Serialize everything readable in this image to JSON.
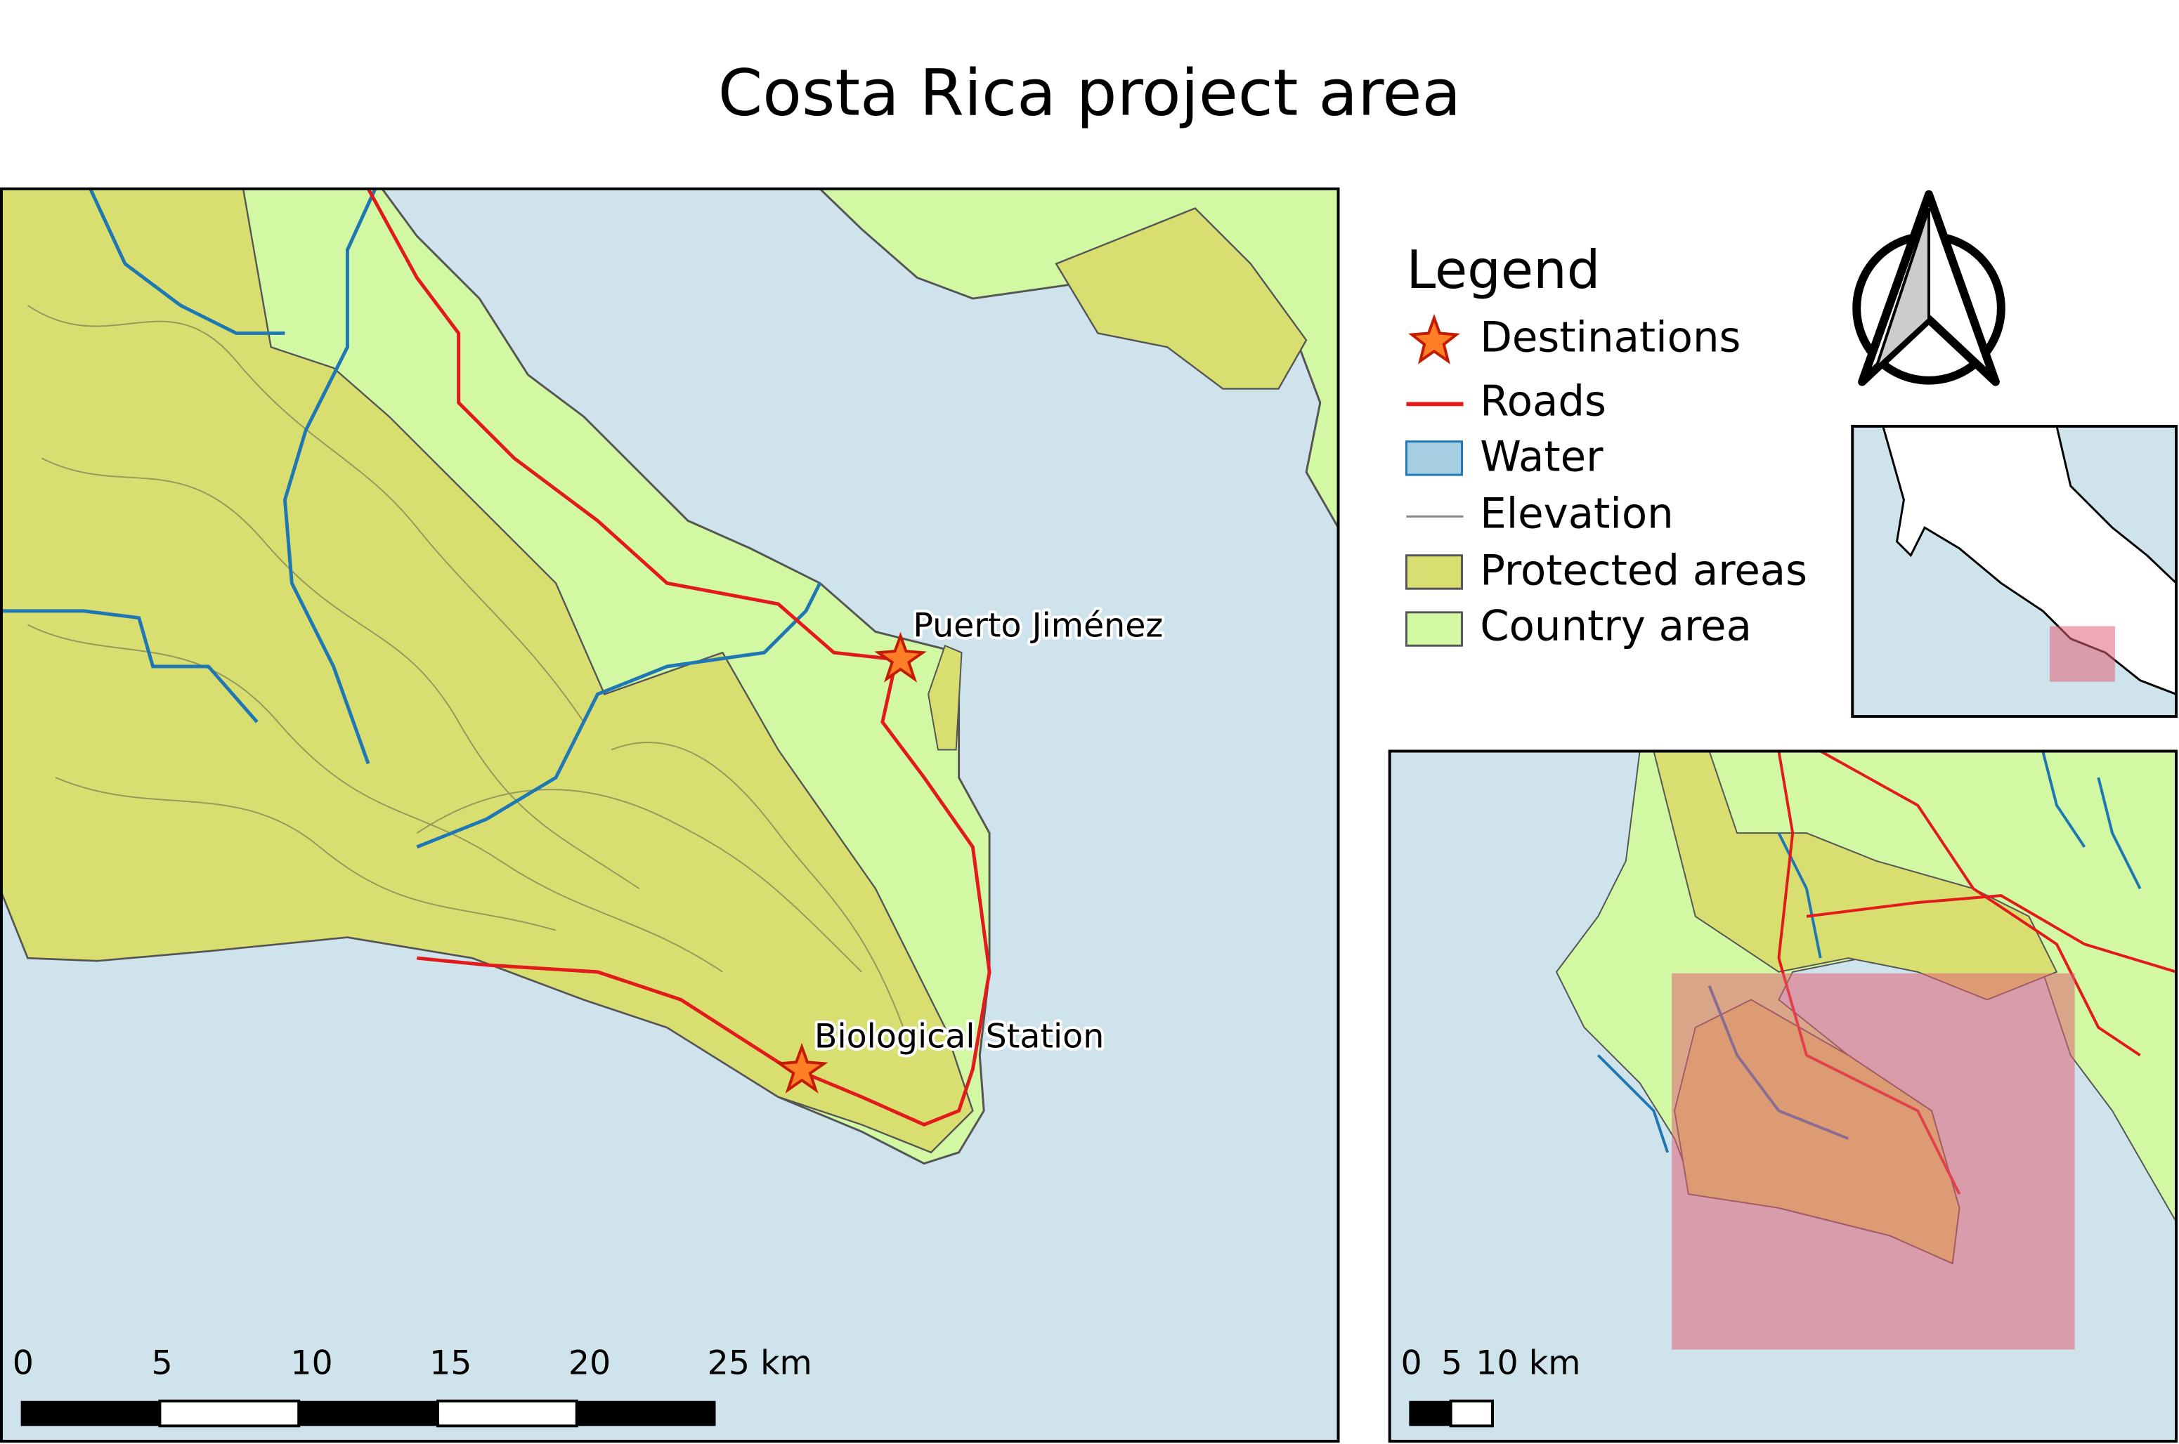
{
  "title": "Costa Rica project area",
  "legend": {
    "title": "Legend",
    "items": [
      "Destinations",
      "Roads",
      "Water",
      "Elevation",
      "Protected areas",
      "Country area"
    ]
  },
  "main_map": {
    "places": [
      "Puerto Jiménez",
      "Biological Station"
    ],
    "scale_bar": [
      "0",
      "5",
      "10",
      "15",
      "20",
      "25 km"
    ]
  },
  "overview_map": {
    "scale_bar": [
      "0",
      "5",
      "10 km"
    ]
  }
}
